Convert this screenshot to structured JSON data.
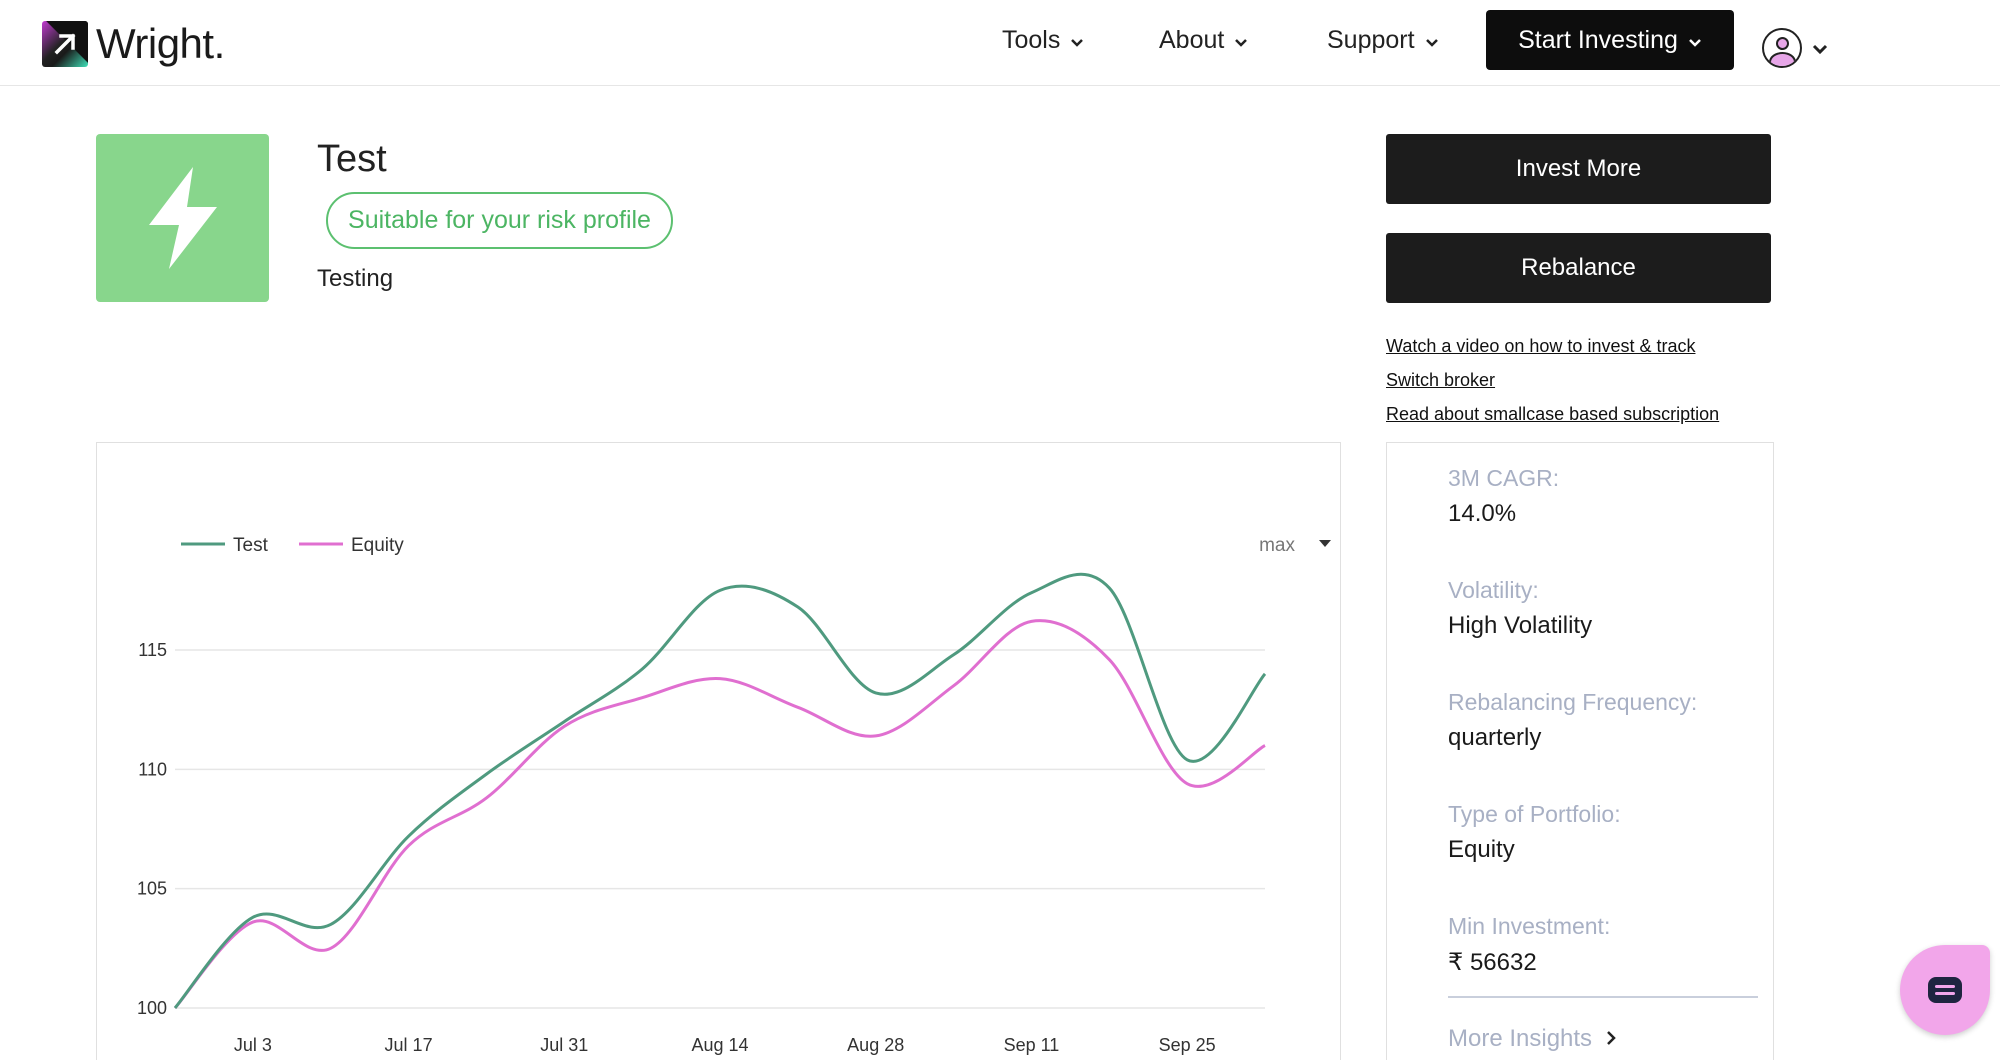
{
  "header": {
    "logo_text": "Wright.",
    "nav": [
      {
        "label": "Tools"
      },
      {
        "label": "About"
      },
      {
        "label": "Support"
      }
    ],
    "start_investing_label": "Start Investing"
  },
  "portfolio": {
    "name": "Test",
    "risk_badge": "Suitable for your risk profile",
    "description": "Testing",
    "icon": "lightning-bolt-icon",
    "icon_bg": "#88d68c"
  },
  "actions": {
    "invest_more": "Invest More",
    "rebalance": "Rebalance",
    "links": [
      "Watch a video on how to invest & track",
      "Switch broker",
      "Read about smallcase based subscription"
    ]
  },
  "chart_data": {
    "type": "line",
    "range_selector": "max",
    "x": [
      "2024-06-26",
      "2024-07-03",
      "2024-07-10",
      "2024-07-17",
      "2024-07-24",
      "2024-07-31",
      "2024-08-07",
      "2024-08-14",
      "2024-08-21",
      "2024-08-28",
      "2024-09-04",
      "2024-09-11",
      "2024-09-18",
      "2024-09-25",
      "2024-10-02"
    ],
    "x_tick_labels": [
      "Jul 3",
      "Jul 17",
      "Jul 31",
      "Aug 14",
      "Aug 28",
      "Sep 11",
      "Sep 25"
    ],
    "y_ticks": [
      100,
      105,
      110,
      115
    ],
    "ylim": [
      100,
      117
    ],
    "legend_position": "top-left",
    "series": [
      {
        "name": "Test",
        "color": "#4f9a7f",
        "values": [
          100,
          103.8,
          103.5,
          107.2,
          109.8,
          112.0,
          114.2,
          117.5,
          116.8,
          113.2,
          114.8,
          117.4,
          117.6,
          110.4,
          114.0
        ]
      },
      {
        "name": "Equity",
        "color": "#e06fd0",
        "values": [
          100,
          103.6,
          102.5,
          106.8,
          108.8,
          111.8,
          113.0,
          113.8,
          112.6,
          111.4,
          113.5,
          116.2,
          114.6,
          109.4,
          111.0
        ]
      }
    ]
  },
  "stats": [
    {
      "label": "3M CAGR:",
      "value": "14.0%"
    },
    {
      "label": "Volatility:",
      "value": "High Volatility"
    },
    {
      "label": "Rebalancing Frequency:",
      "value": "quarterly"
    },
    {
      "label": "Type of Portfolio:",
      "value": "Equity"
    },
    {
      "label": "Min Investment:",
      "value": "₹ 56632"
    }
  ],
  "more_insights": "More Insights"
}
